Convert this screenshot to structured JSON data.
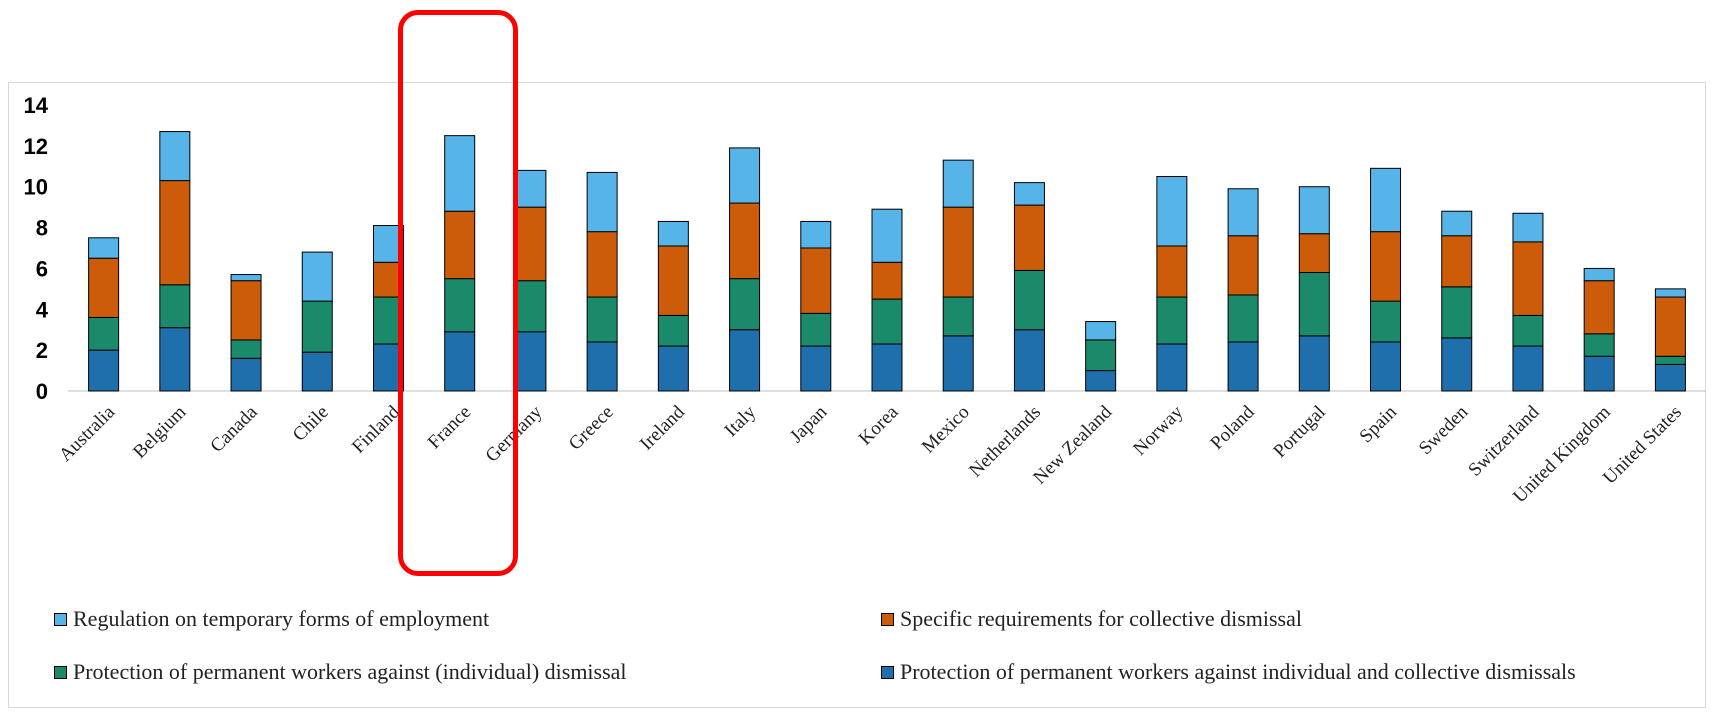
{
  "chart_data": {
    "type": "bar",
    "stacked": true,
    "ylim": [
      0,
      14
    ],
    "yticks": [
      0,
      2,
      4,
      6,
      8,
      10,
      12,
      14
    ],
    "grid": false,
    "legend_position": "bottom",
    "highlighted_category": "France",
    "categories": [
      "Australia",
      "Belgium",
      "Canada",
      "Chile",
      "Finland",
      "France",
      "Germany",
      "Greece",
      "Ireland",
      "Italy",
      "Japan",
      "Korea",
      "Mexico",
      "Netherlands",
      "New Zealand",
      "Norway",
      "Poland",
      "Portugal",
      "Spain",
      "Sweden",
      "Switzerland",
      "United Kingdom",
      "United States"
    ],
    "series": [
      {
        "name": "Protection of permanent workers against individual and collective dismissals",
        "color": "#1f6fad",
        "values": [
          2.0,
          3.1,
          1.6,
          1.9,
          2.3,
          2.9,
          2.9,
          2.4,
          2.2,
          3.0,
          2.2,
          2.3,
          2.7,
          3.0,
          1.0,
          2.3,
          2.4,
          2.7,
          2.4,
          2.6,
          2.2,
          1.7,
          1.3
        ]
      },
      {
        "name": "Protection of permanent workers against (individual) dismissal",
        "color": "#1a8a6a",
        "values": [
          1.6,
          2.1,
          0.9,
          2.5,
          2.3,
          2.6,
          2.5,
          2.2,
          1.5,
          2.5,
          1.6,
          2.2,
          1.9,
          2.9,
          1.5,
          2.3,
          2.3,
          3.1,
          2.0,
          2.5,
          1.5,
          1.1,
          0.4
        ]
      },
      {
        "name": "Specific requirements for collective dismissal",
        "color": "#cc5c0a",
        "values": [
          2.9,
          5.1,
          2.9,
          0.0,
          1.7,
          3.3,
          3.6,
          3.2,
          3.4,
          3.7,
          3.2,
          1.8,
          4.4,
          3.2,
          0.0,
          2.5,
          2.9,
          1.9,
          3.4,
          2.5,
          3.6,
          2.6,
          2.9
        ]
      },
      {
        "name": "Regulation on temporary forms of employment",
        "color": "#56b4e9",
        "values": [
          1.0,
          2.4,
          0.3,
          2.4,
          1.8,
          3.7,
          1.8,
          2.9,
          1.2,
          2.7,
          1.3,
          2.6,
          2.3,
          1.1,
          0.9,
          3.4,
          2.3,
          2.3,
          3.1,
          1.2,
          1.4,
          0.6,
          0.4
        ]
      }
    ],
    "legend_rows": [
      [
        "Regulation on temporary forms of employment",
        "Specific requirements for collective dismissal"
      ],
      [
        "Protection of permanent workers against (individual) dismissal",
        "Protection of permanent workers against individual and collective dismissals"
      ]
    ]
  }
}
